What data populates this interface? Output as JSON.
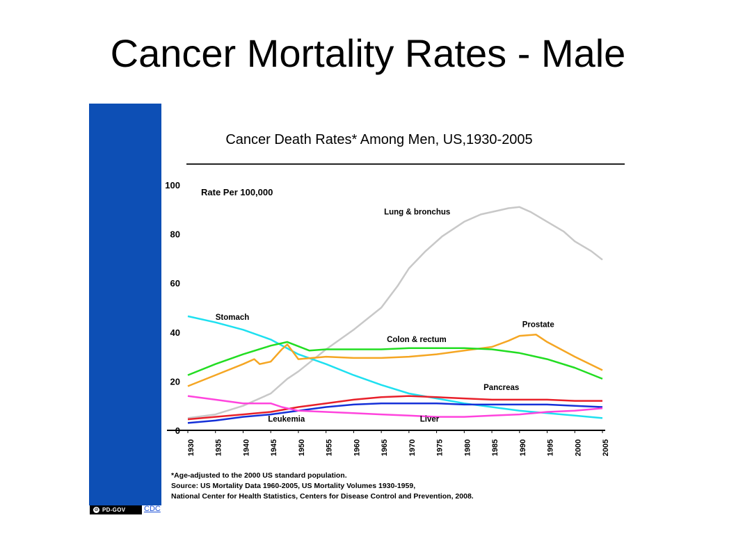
{
  "slide": {
    "title": "Cancer Mortality Rates - Male"
  },
  "badge": {
    "label": "PD-GOV",
    "icon": "copyright-icon"
  },
  "credit": {
    "label": "CDC"
  },
  "colors": {
    "blue_bar": "#0d4fb5"
  },
  "chart_data": {
    "type": "line",
    "title": "Cancer Death Rates* Among Men, US,1930-2005",
    "ylabel": "Rate Per 100,000",
    "xlabel": "",
    "ylim": [
      0,
      100
    ],
    "yticks": [
      "0",
      "20",
      "40",
      "60",
      "80",
      "100"
    ],
    "xticks": [
      "1930",
      "1935",
      "1940",
      "1945",
      "1950",
      "1955",
      "1960",
      "1965",
      "1970",
      "1975",
      "1980",
      "1985",
      "1990",
      "1995",
      "2000",
      "2005"
    ],
    "grid": false,
    "series": [
      {
        "name": "Lung & bronchus",
        "color": "#c8c8c8",
        "points": [
          [
            1930,
            5
          ],
          [
            1935,
            6.5
          ],
          [
            1940,
            10
          ],
          [
            1945,
            15
          ],
          [
            1948,
            21
          ],
          [
            1950,
            24
          ],
          [
            1955,
            33
          ],
          [
            1960,
            41
          ],
          [
            1965,
            50
          ],
          [
            1968,
            59
          ],
          [
            1970,
            66
          ],
          [
            1973,
            73
          ],
          [
            1976,
            79
          ],
          [
            1980,
            85
          ],
          [
            1983,
            88
          ],
          [
            1986,
            89.5
          ],
          [
            1988,
            90.5
          ],
          [
            1990,
            91
          ],
          [
            1992,
            89
          ],
          [
            1995,
            85
          ],
          [
            1998,
            81
          ],
          [
            2000,
            77
          ],
          [
            2003,
            73
          ],
          [
            2005,
            69.5
          ]
        ]
      },
      {
        "name": "Stomach",
        "color": "#1ee0f0",
        "points": [
          [
            1930,
            46.5
          ],
          [
            1935,
            44
          ],
          [
            1940,
            41
          ],
          [
            1945,
            37
          ],
          [
            1950,
            31
          ],
          [
            1955,
            27
          ],
          [
            1960,
            22.5
          ],
          [
            1965,
            18.5
          ],
          [
            1970,
            15
          ],
          [
            1975,
            13
          ],
          [
            1980,
            11
          ],
          [
            1985,
            9.5
          ],
          [
            1990,
            8
          ],
          [
            1995,
            7
          ],
          [
            2000,
            6
          ],
          [
            2005,
            5
          ]
        ]
      },
      {
        "name": "Prostate",
        "color": "#f5a623",
        "points": [
          [
            1930,
            18
          ],
          [
            1935,
            22.5
          ],
          [
            1940,
            27
          ],
          [
            1942,
            29
          ],
          [
            1943,
            27
          ],
          [
            1945,
            28
          ],
          [
            1947,
            33
          ],
          [
            1948,
            35
          ],
          [
            1950,
            29
          ],
          [
            1955,
            30
          ],
          [
            1960,
            29.5
          ],
          [
            1965,
            29.5
          ],
          [
            1970,
            30
          ],
          [
            1975,
            31
          ],
          [
            1980,
            32.5
          ],
          [
            1985,
            34
          ],
          [
            1988,
            36.5
          ],
          [
            1990,
            38.5
          ],
          [
            1993,
            39
          ],
          [
            1995,
            36
          ],
          [
            2000,
            30
          ],
          [
            2005,
            24.5
          ]
        ]
      },
      {
        "name": "Colon & rectum",
        "color": "#22dd22",
        "points": [
          [
            1930,
            22.5
          ],
          [
            1935,
            27
          ],
          [
            1940,
            31
          ],
          [
            1945,
            34.5
          ],
          [
            1948,
            36
          ],
          [
            1952,
            32.5
          ],
          [
            1955,
            33
          ],
          [
            1960,
            33
          ],
          [
            1965,
            33
          ],
          [
            1970,
            33.5
          ],
          [
            1975,
            33.5
          ],
          [
            1980,
            33.5
          ],
          [
            1985,
            33
          ],
          [
            1990,
            31.5
          ],
          [
            1995,
            29
          ],
          [
            2000,
            25.5
          ],
          [
            2005,
            21
          ]
        ]
      },
      {
        "name": "Pancreas",
        "color": "#e8202a",
        "points": [
          [
            1930,
            4.5
          ],
          [
            1935,
            5.5
          ],
          [
            1940,
            6.5
          ],
          [
            1945,
            7.5
          ],
          [
            1950,
            9.5
          ],
          [
            1955,
            11
          ],
          [
            1960,
            12.5
          ],
          [
            1965,
            13.5
          ],
          [
            1970,
            14
          ],
          [
            1975,
            13.5
          ],
          [
            1980,
            13
          ],
          [
            1985,
            12.5
          ],
          [
            1990,
            12.5
          ],
          [
            1995,
            12.5
          ],
          [
            2000,
            12
          ],
          [
            2005,
            12
          ]
        ]
      },
      {
        "name": "Leukemia",
        "color": "#1530d8",
        "points": [
          [
            1930,
            3
          ],
          [
            1935,
            4
          ],
          [
            1940,
            5.5
          ],
          [
            1945,
            6.5
          ],
          [
            1950,
            8
          ],
          [
            1955,
            9.5
          ],
          [
            1960,
            10.5
          ],
          [
            1965,
            11
          ],
          [
            1970,
            11
          ],
          [
            1975,
            11
          ],
          [
            1980,
            10.5
          ],
          [
            1985,
            10.5
          ],
          [
            1990,
            10.5
          ],
          [
            1995,
            10.5
          ],
          [
            2000,
            10
          ],
          [
            2005,
            9.5
          ]
        ]
      },
      {
        "name": "Liver",
        "color": "#ff44dd",
        "points": [
          [
            1930,
            14
          ],
          [
            1935,
            12.5
          ],
          [
            1940,
            11
          ],
          [
            1945,
            11
          ],
          [
            1947,
            9.5
          ],
          [
            1950,
            8
          ],
          [
            1955,
            7.5
          ],
          [
            1960,
            7
          ],
          [
            1965,
            6.5
          ],
          [
            1970,
            6
          ],
          [
            1975,
            5.5
          ],
          [
            1980,
            5.5
          ],
          [
            1985,
            6
          ],
          [
            1990,
            6.5
          ],
          [
            1995,
            7.5
          ],
          [
            2000,
            8
          ],
          [
            2005,
            9
          ]
        ]
      }
    ],
    "series_labels": [
      {
        "text": "Lung & bronchus",
        "x": 1965.5,
        "y": 88
      },
      {
        "text": "Stomach",
        "x": 1935,
        "y": 45
      },
      {
        "text": "Prostate",
        "x": 1990.5,
        "y": 42
      },
      {
        "text": "Colon & rectum",
        "x": 1966,
        "y": 36
      },
      {
        "text": "Pancreas",
        "x": 1983.5,
        "y": 16.5
      },
      {
        "text": "Leukemia",
        "x": 1944.5,
        "y": 3.5
      },
      {
        "text": "Liver",
        "x": 1972,
        "y": 3.5
      }
    ],
    "footnotes": [
      "*Age-adjusted to the 2000 US standard population.",
      "Source:  US Mortality Data 1960-2005, US Mortality Volumes 1930-1959,",
      "National Center for Health Statistics, Centers for Disease Control and Prevention, 2008."
    ]
  }
}
